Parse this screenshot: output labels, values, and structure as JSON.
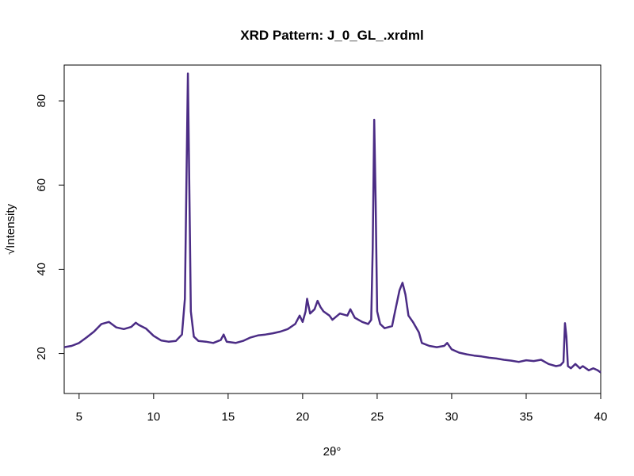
{
  "chart_data": {
    "type": "line",
    "title": "XRD Pattern: J_0_GL_.xrdml",
    "xlabel": "2θ°",
    "ylabel": "√Intensity",
    "xlim": [
      4,
      40
    ],
    "ylim": [
      10.5,
      88.5
    ],
    "x_ticks": [
      5,
      10,
      15,
      20,
      25,
      30,
      35,
      40
    ],
    "y_ticks": [
      20,
      40,
      60,
      80
    ],
    "grid": false,
    "legend": "none",
    "line_color": "#4b2c85",
    "series": [
      {
        "x": [
          4.0,
          4.5,
          5.0,
          5.5,
          6.0,
          6.5,
          7.0,
          7.5,
          8.0,
          8.5,
          8.8,
          9.0,
          9.5,
          10.0,
          10.5,
          11.0,
          11.5,
          11.9,
          12.1,
          12.2,
          12.3,
          12.4,
          12.5,
          12.7,
          13.0,
          13.5,
          14.0,
          14.5,
          14.7,
          14.9,
          15.5,
          16.0,
          16.5,
          17.0,
          17.5,
          18.0,
          18.5,
          19.0,
          19.5,
          19.8,
          20.0,
          20.2,
          20.3,
          20.5,
          20.8,
          21.0,
          21.2,
          21.4,
          21.8,
          22.0,
          22.5,
          23.0,
          23.2,
          23.5,
          24.0,
          24.4,
          24.6,
          24.7,
          24.8,
          24.9,
          25.0,
          25.2,
          25.5,
          26.0,
          26.2,
          26.5,
          26.7,
          26.9,
          27.1,
          27.4,
          27.8,
          28.0,
          28.5,
          29.0,
          29.5,
          29.7,
          30.0,
          30.5,
          31.0,
          31.5,
          32.0,
          32.5,
          33.0,
          33.5,
          34.0,
          34.5,
          35.0,
          35.5,
          36.0,
          36.5,
          37.0,
          37.3,
          37.5,
          37.6,
          37.7,
          37.8,
          38.0,
          38.3,
          38.6,
          38.8,
          39.2,
          39.5,
          39.8,
          40.0
        ],
        "y": [
          21.5,
          21.8,
          22.5,
          23.8,
          25.2,
          27.0,
          27.5,
          26.2,
          25.8,
          26.3,
          27.3,
          26.8,
          25.9,
          24.2,
          23.1,
          22.8,
          23.0,
          24.5,
          33.0,
          60.0,
          86.5,
          58.0,
          30.0,
          24.0,
          23.0,
          22.8,
          22.5,
          23.2,
          24.5,
          22.8,
          22.5,
          23.0,
          23.8,
          24.3,
          24.5,
          24.8,
          25.2,
          25.8,
          27.0,
          29.0,
          27.5,
          30.0,
          33.0,
          29.5,
          30.5,
          32.5,
          31.0,
          30.0,
          29.0,
          28.0,
          29.5,
          29.0,
          30.5,
          28.5,
          27.5,
          27.0,
          28.0,
          45.0,
          75.5,
          56.0,
          30.0,
          27.0,
          26.0,
          26.5,
          30.0,
          35.0,
          36.8,
          34.0,
          29.0,
          27.5,
          25.0,
          22.5,
          21.8,
          21.5,
          21.8,
          22.5,
          21.0,
          20.2,
          19.8,
          19.5,
          19.3,
          19.0,
          18.8,
          18.5,
          18.3,
          18.0,
          18.4,
          18.2,
          18.5,
          17.5,
          17.0,
          17.2,
          18.0,
          27.2,
          24.0,
          17.0,
          16.5,
          17.5,
          16.5,
          17.0,
          16.0,
          16.5,
          16.0,
          15.5
        ]
      }
    ]
  }
}
